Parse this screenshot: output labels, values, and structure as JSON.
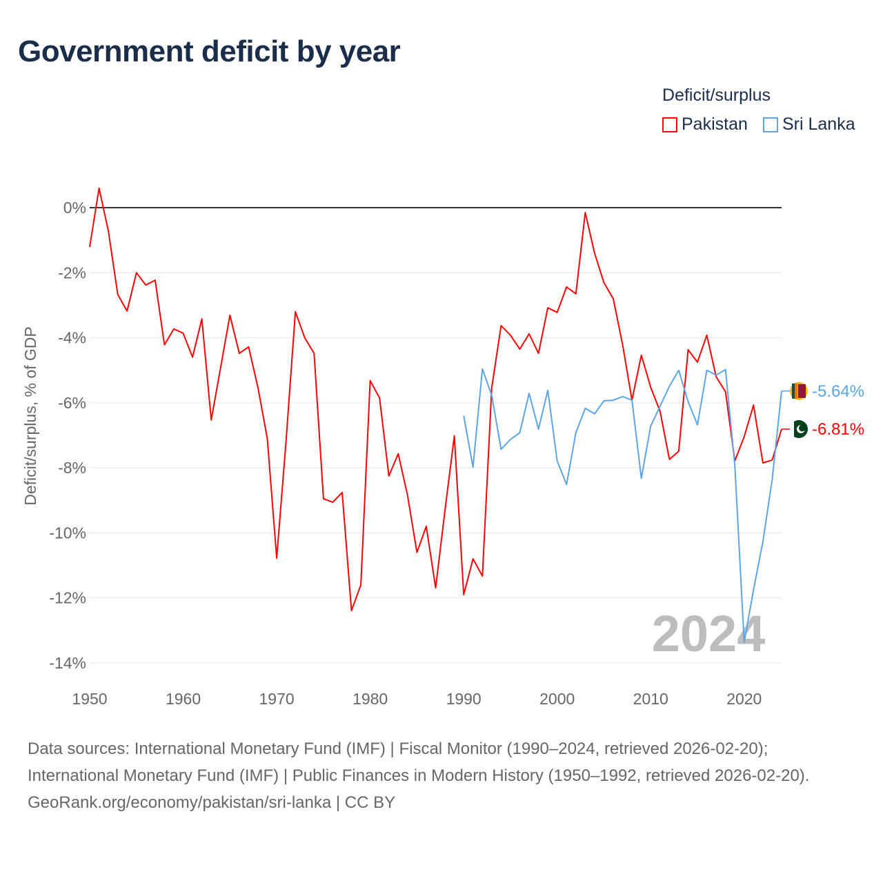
{
  "title": "Government deficit by year",
  "legend": {
    "title": "Deficit/surplus",
    "items": [
      {
        "name": "Pakistan",
        "color": "#ff0000"
      },
      {
        "name": "Sri Lanka",
        "color": "#5aa5e8"
      }
    ]
  },
  "year_watermark": "2024",
  "end_labels": {
    "pakistan": "-6.81%",
    "sri_lanka": "-5.64%"
  },
  "sources": {
    "line1": "Data sources: International Monetary Fund (IMF) | Fiscal Monitor (1990–2024, retrieved 2026-02-20); International Monetary Fund (IMF) | Public Finances in Modern History (1950–1992, retrieved 2026-02-20).",
    "line2": "GeoRank.org/economy/pakistan/sri-lanka | CC BY"
  },
  "chart_data": {
    "type": "line",
    "title": "Government deficit by year",
    "xlabel": "",
    "ylabel": "Deficit/surplus, % of GDP",
    "xlim": [
      1950,
      2024
    ],
    "ylim": [
      -14,
      0.6
    ],
    "x_ticks": [
      1950,
      1960,
      1970,
      1980,
      1990,
      2000,
      2010,
      2020
    ],
    "y_ticks": [
      0,
      -2,
      -4,
      -6,
      -8,
      -10,
      -12,
      -14
    ],
    "y_tick_labels": [
      "0%",
      "-2%",
      "-4%",
      "-6%",
      "-8%",
      "-10%",
      "-12%",
      "-14%"
    ],
    "grid": true,
    "legend_position": "top-right",
    "series": [
      {
        "name": "Pakistan",
        "color": "#ff0000",
        "start_year": 1950,
        "values": [
          -1.21,
          0.6,
          -0.72,
          -2.67,
          -3.18,
          -2.0,
          -2.38,
          -2.23,
          -4.22,
          -3.73,
          -3.86,
          -4.6,
          -3.42,
          -6.53,
          -4.92,
          -3.31,
          -4.48,
          -4.28,
          -5.54,
          -7.1,
          -10.78,
          -7.2,
          -3.2,
          -4.0,
          -4.48,
          -8.95,
          -9.06,
          -8.76,
          -12.39,
          -11.6,
          -5.32,
          -5.85,
          -8.25,
          -7.57,
          -8.85,
          -10.6,
          -9.8,
          -11.69,
          -9.3,
          -7.02,
          -11.9,
          -10.8,
          -11.33,
          -5.54,
          -3.63,
          -3.92,
          -4.35,
          -3.88,
          -4.48,
          -3.08,
          -3.22,
          -2.44,
          -2.65,
          -0.15,
          -1.4,
          -2.31,
          -2.8,
          -4.22,
          -5.92,
          -4.54,
          -5.52,
          -6.26,
          -7.74,
          -7.49,
          -4.37,
          -4.75,
          -3.92,
          -5.2,
          -5.66,
          -7.79,
          -7.04,
          -6.07,
          -7.85,
          -7.76,
          -6.81
        ]
      },
      {
        "name": "Sri Lanka",
        "color": "#5aa5e8",
        "start_year": 1990,
        "values": [
          -6.4,
          -7.98,
          -4.96,
          -5.77,
          -7.43,
          -7.13,
          -6.92,
          -5.71,
          -6.81,
          -5.62,
          -7.79,
          -8.51,
          -6.92,
          -6.17,
          -6.34,
          -5.94,
          -5.92,
          -5.81,
          -5.92,
          -8.32,
          -6.72,
          -6.11,
          -5.49,
          -5.0,
          -5.96,
          -6.68,
          -5.0,
          -5.15,
          -4.98,
          -7.93,
          -13.36,
          -11.75,
          -10.27,
          -8.36,
          -5.64
        ]
      }
    ]
  }
}
